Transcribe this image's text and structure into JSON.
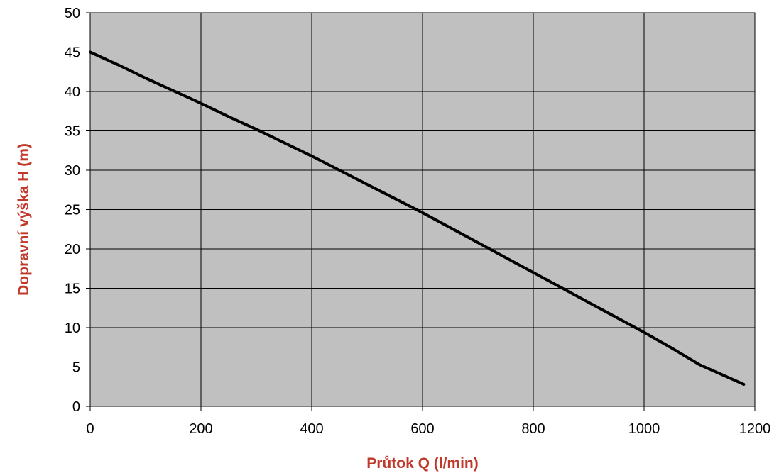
{
  "chart_data": {
    "type": "line",
    "title": "",
    "xlabel": "Průtok Q (l/min)",
    "ylabel": "Dopravní výška H (m)",
    "xlim": [
      0,
      1200
    ],
    "ylim": [
      0,
      50
    ],
    "xticks": [
      0,
      200,
      400,
      600,
      800,
      1000,
      1200
    ],
    "yticks": [
      0,
      5,
      10,
      15,
      20,
      25,
      30,
      35,
      40,
      45,
      50
    ],
    "grid": true,
    "legend": "none",
    "colors": {
      "plot_background": "#c0c0c0",
      "grid": "#000000",
      "series": "#000000",
      "axis_title": "#c0392b"
    },
    "series": [
      {
        "name": "",
        "x": [
          0,
          50,
          100,
          150,
          200,
          250,
          300,
          350,
          400,
          450,
          500,
          550,
          600,
          650,
          700,
          750,
          800,
          850,
          900,
          950,
          1000,
          1050,
          1100,
          1180
        ],
        "values": [
          45.0,
          43.4,
          41.7,
          40.1,
          38.5,
          36.8,
          35.2,
          33.5,
          31.8,
          30.0,
          28.2,
          26.4,
          24.6,
          22.7,
          20.8,
          18.9,
          17.0,
          15.1,
          13.2,
          11.3,
          9.4,
          7.4,
          5.3,
          2.8
        ]
      }
    ]
  }
}
